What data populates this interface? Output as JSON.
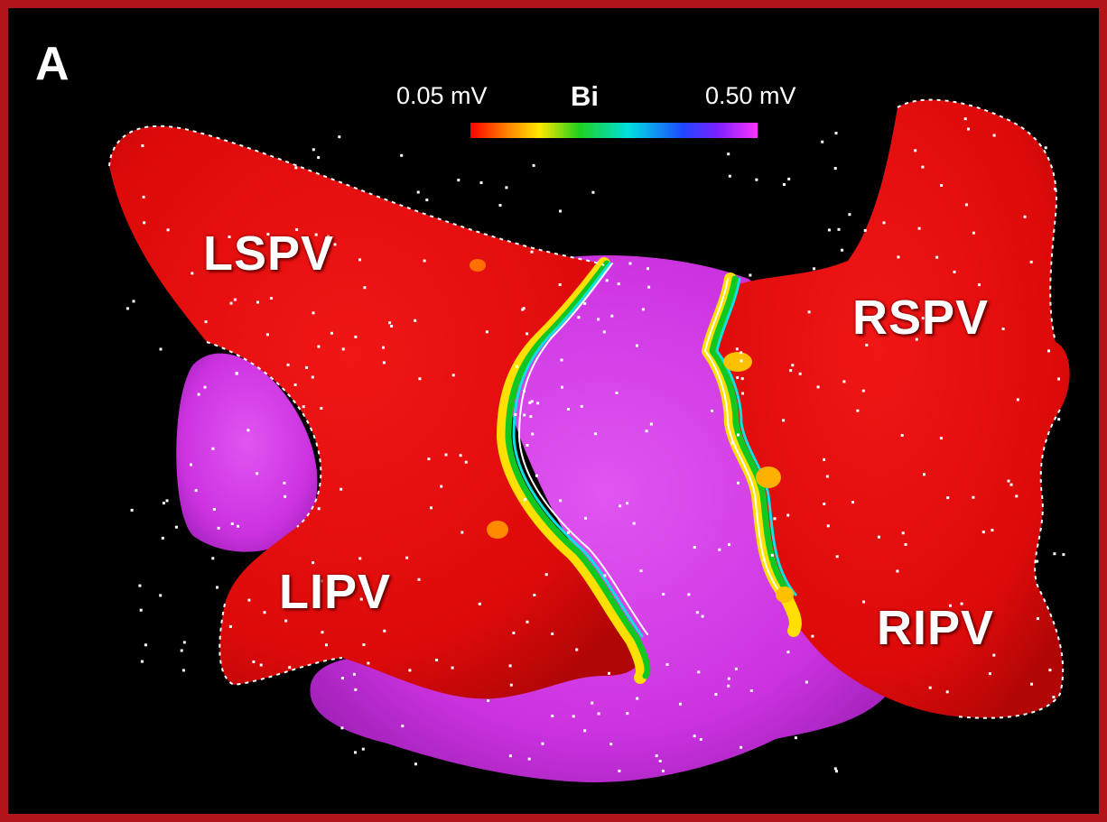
{
  "panel": {
    "letter": "A"
  },
  "color_scale": {
    "min_label": "0.05 mV",
    "mode_label": "Bi",
    "max_label": "0.50 mV",
    "colors": [
      "#ff0000",
      "#ff7a00",
      "#ffe800",
      "#1ed01e",
      "#00e0e0",
      "#1f48ff",
      "#7a20ff",
      "#ff33ff"
    ]
  },
  "labels": {
    "lspv": "LSPV",
    "lipv": "LIPV",
    "rspv": "RSPV",
    "ripv": "RIPV"
  },
  "colors": {
    "frame": "#b0151a",
    "background": "#000000",
    "low_voltage": "#e60d0d",
    "high_voltage": "#d23ae6",
    "points": "#ffffff"
  }
}
